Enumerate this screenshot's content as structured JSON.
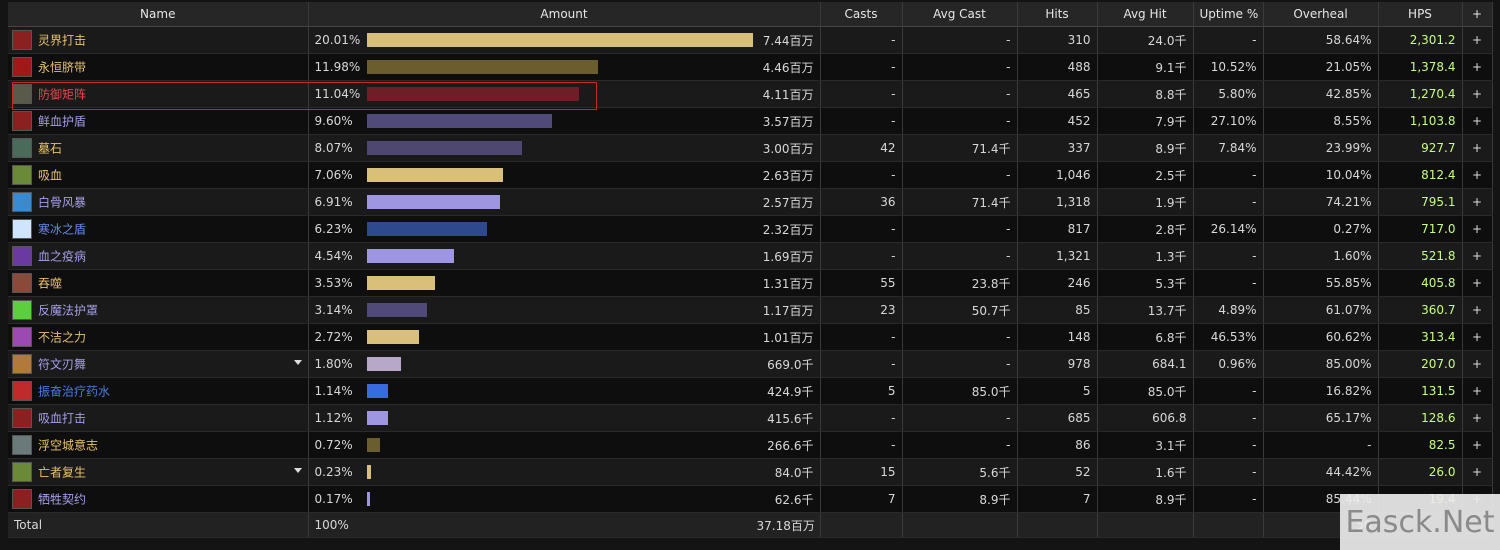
{
  "columns": [
    "Name",
    "Amount",
    "Casts",
    "Avg Cast",
    "Hits",
    "Avg Hit",
    "Uptime %",
    "Overheal",
    "HPS",
    "+"
  ],
  "rows": [
    {
      "name": "灵界打击",
      "name_color": "#e8c26a",
      "icon": "death-strike-icon",
      "icon_color": "#8c1f1f",
      "pct": "20.01%",
      "fill": 20.01,
      "bar_color": "#d8c07a",
      "amount": "7.44百万",
      "casts": "-",
      "avg_cast": "-",
      "hits": "310",
      "avg_hit": "24.0千",
      "uptime": "-",
      "overheal": "58.64%",
      "hps": "2,301.2",
      "plus": "+",
      "dropdown": false
    },
    {
      "name": "永恒脐带",
      "name_color": "#e8c26a",
      "icon": "eternal-umbilical-icon",
      "icon_color": "#a01818",
      "pct": "11.98%",
      "fill": 11.98,
      "bar_color": "#6b5e2e",
      "amount": "4.46百万",
      "casts": "-",
      "avg_cast": "-",
      "hits": "488",
      "avg_hit": "9.1千",
      "uptime": "10.52%",
      "overheal": "21.05%",
      "hps": "1,378.4",
      "plus": "+",
      "dropdown": false
    },
    {
      "name": "防御矩阵",
      "name_color": "#e04a4a",
      "icon": "defensive-matrix-icon",
      "icon_color": "#5a5a4a",
      "pct": "11.04%",
      "fill": 11.04,
      "bar_color": "#6e1e26",
      "amount": "4.11百万",
      "casts": "-",
      "avg_cast": "-",
      "hits": "465",
      "avg_hit": "8.8千",
      "uptime": "5.80%",
      "overheal": "42.85%",
      "hps": "1,270.4",
      "plus": "+",
      "dropdown": false
    },
    {
      "name": "鲜血护盾",
      "name_color": "#a49ee6",
      "icon": "blood-shield-icon",
      "icon_color": "#8c1f1f",
      "pct": "9.60%",
      "fill": 9.6,
      "bar_color": "#504a78",
      "amount": "3.57百万",
      "casts": "-",
      "avg_cast": "-",
      "hits": "452",
      "avg_hit": "7.9千",
      "uptime": "27.10%",
      "overheal": "8.55%",
      "hps": "1,103.8",
      "plus": "+",
      "dropdown": false
    },
    {
      "name": "墓石",
      "name_color": "#e8c26a",
      "icon": "tombstone-icon",
      "icon_color": "#4a6a5a",
      "pct": "8.07%",
      "fill": 8.07,
      "bar_color": "#4e4870",
      "amount": "3.00百万",
      "casts": "42",
      "avg_cast": "71.4千",
      "hits": "337",
      "avg_hit": "8.9千",
      "uptime": "7.84%",
      "overheal": "23.99%",
      "hps": "927.7",
      "plus": "+",
      "dropdown": false
    },
    {
      "name": "吸血",
      "name_color": "#e8c26a",
      "icon": "leech-icon",
      "icon_color": "#6a8a3a",
      "pct": "7.06%",
      "fill": 7.06,
      "bar_color": "#d8c07a",
      "amount": "2.63百万",
      "casts": "-",
      "avg_cast": "-",
      "hits": "1,046",
      "avg_hit": "2.5千",
      "uptime": "-",
      "overheal": "10.04%",
      "hps": "812.4",
      "plus": "+",
      "dropdown": false
    },
    {
      "name": "白骨风暴",
      "name_color": "#a49ee6",
      "icon": "bonestorm-icon",
      "icon_color": "#3a8ad0",
      "pct": "6.91%",
      "fill": 6.91,
      "bar_color": "#9e96e0",
      "amount": "2.57百万",
      "casts": "36",
      "avg_cast": "71.4千",
      "hits": "1,318",
      "avg_hit": "1.9千",
      "uptime": "-",
      "overheal": "74.21%",
      "hps": "795.1",
      "plus": "+",
      "dropdown": false
    },
    {
      "name": "寒冰之盾",
      "name_color": "#6a8ae6",
      "icon": "ice-shield-icon",
      "icon_color": "#cfe4ff",
      "pct": "6.23%",
      "fill": 6.23,
      "bar_color": "#2e4a8c",
      "amount": "2.32百万",
      "casts": "-",
      "avg_cast": "-",
      "hits": "817",
      "avg_hit": "2.8千",
      "uptime": "26.14%",
      "overheal": "0.27%",
      "hps": "717.0",
      "plus": "+",
      "dropdown": false
    },
    {
      "name": "血之疫病",
      "name_color": "#a49ee6",
      "icon": "blood-plague-icon",
      "icon_color": "#6a3aa0",
      "pct": "4.54%",
      "fill": 4.54,
      "bar_color": "#9e96e0",
      "amount": "1.69百万",
      "casts": "-",
      "avg_cast": "-",
      "hits": "1,321",
      "avg_hit": "1.3千",
      "uptime": "-",
      "overheal": "1.60%",
      "hps": "521.8",
      "plus": "+",
      "dropdown": false
    },
    {
      "name": "吞噬",
      "name_color": "#e8c26a",
      "icon": "consumption-icon",
      "icon_color": "#8a4a3a",
      "pct": "3.53%",
      "fill": 3.53,
      "bar_color": "#d8c07a",
      "amount": "1.31百万",
      "casts": "55",
      "avg_cast": "23.8千",
      "hits": "246",
      "avg_hit": "5.3千",
      "uptime": "-",
      "overheal": "55.85%",
      "hps": "405.8",
      "plus": "+",
      "dropdown": false
    },
    {
      "name": "反魔法护罩",
      "name_color": "#a49ee6",
      "icon": "anti-magic-shell-icon",
      "icon_color": "#5ad03a",
      "pct": "3.14%",
      "fill": 3.14,
      "bar_color": "#504a78",
      "amount": "1.17百万",
      "casts": "23",
      "avg_cast": "50.7千",
      "hits": "85",
      "avg_hit": "13.7千",
      "uptime": "4.89%",
      "overheal": "61.07%",
      "hps": "360.7",
      "plus": "+",
      "dropdown": false
    },
    {
      "name": "不洁之力",
      "name_color": "#e8c26a",
      "icon": "unholy-strength-icon",
      "icon_color": "#9a4ab0",
      "pct": "2.72%",
      "fill": 2.72,
      "bar_color": "#d8c07a",
      "amount": "1.01百万",
      "casts": "-",
      "avg_cast": "-",
      "hits": "148",
      "avg_hit": "6.8千",
      "uptime": "46.53%",
      "overheal": "60.62%",
      "hps": "313.4",
      "plus": "+",
      "dropdown": false
    },
    {
      "name": "符文刃舞",
      "name_color": "#a49ee6",
      "icon": "dancing-rune-weapon-icon",
      "icon_color": "#b07a3a",
      "pct": "1.80%",
      "fill": 1.8,
      "bar_color": "#b8a8c8",
      "amount": "669.0千",
      "casts": "-",
      "avg_cast": "-",
      "hits": "978",
      "avg_hit": "684.1",
      "uptime": "0.96%",
      "overheal": "85.00%",
      "hps": "207.0",
      "plus": "+",
      "dropdown": true
    },
    {
      "name": "振奋治疗药水",
      "name_color": "#4a7ae6",
      "icon": "healing-potion-icon",
      "icon_color": "#c02a2a",
      "pct": "1.14%",
      "fill": 1.14,
      "bar_color": "#3a6ae0",
      "amount": "424.9千",
      "casts": "5",
      "avg_cast": "85.0千",
      "hits": "5",
      "avg_hit": "85.0千",
      "uptime": "-",
      "overheal": "16.82%",
      "hps": "131.5",
      "plus": "+",
      "dropdown": false
    },
    {
      "name": "吸血打击",
      "name_color": "#a49ee6",
      "icon": "vampiric-strike-icon",
      "icon_color": "#8c1f1f",
      "pct": "1.12%",
      "fill": 1.12,
      "bar_color": "#9e96e0",
      "amount": "415.6千",
      "casts": "-",
      "avg_cast": "-",
      "hits": "685",
      "avg_hit": "606.8",
      "uptime": "-",
      "overheal": "65.17%",
      "hps": "128.6",
      "plus": "+",
      "dropdown": false
    },
    {
      "name": "浮空城意志",
      "name_color": "#e8c26a",
      "icon": "floating-city-will-icon",
      "icon_color": "#6a7a7a",
      "pct": "0.72%",
      "fill": 0.72,
      "bar_color": "#6b5e2e",
      "amount": "266.6千",
      "casts": "-",
      "avg_cast": "-",
      "hits": "86",
      "avg_hit": "3.1千",
      "uptime": "-",
      "overheal": "-",
      "hps": "82.5",
      "plus": "+",
      "dropdown": false
    },
    {
      "name": "亡者复生",
      "name_color": "#e8c26a",
      "icon": "raise-dead-icon",
      "icon_color": "#6a8a3a",
      "pct": "0.23%",
      "fill": 0.23,
      "bar_color": "#d8c07a",
      "amount": "84.0千",
      "casts": "15",
      "avg_cast": "5.6千",
      "hits": "52",
      "avg_hit": "1.6千",
      "uptime": "-",
      "overheal": "44.42%",
      "hps": "26.0",
      "plus": "+",
      "dropdown": true
    },
    {
      "name": "牺牲契约",
      "name_color": "#a49ee6",
      "icon": "sacrificial-pact-icon",
      "icon_color": "#8c1f1f",
      "pct": "0.17%",
      "fill": 0.17,
      "bar_color": "#9e96e0",
      "amount": "62.6千",
      "casts": "7",
      "avg_cast": "8.9千",
      "hits": "7",
      "avg_hit": "8.9千",
      "uptime": "-",
      "overheal": "85.44%",
      "hps": "19.4",
      "plus": "+",
      "dropdown": false
    }
  ],
  "total": {
    "label": "Total",
    "pct": "100%",
    "amount": "37.18百万",
    "overheal": "50",
    "hps": ""
  },
  "watermark": "Easck.Net"
}
